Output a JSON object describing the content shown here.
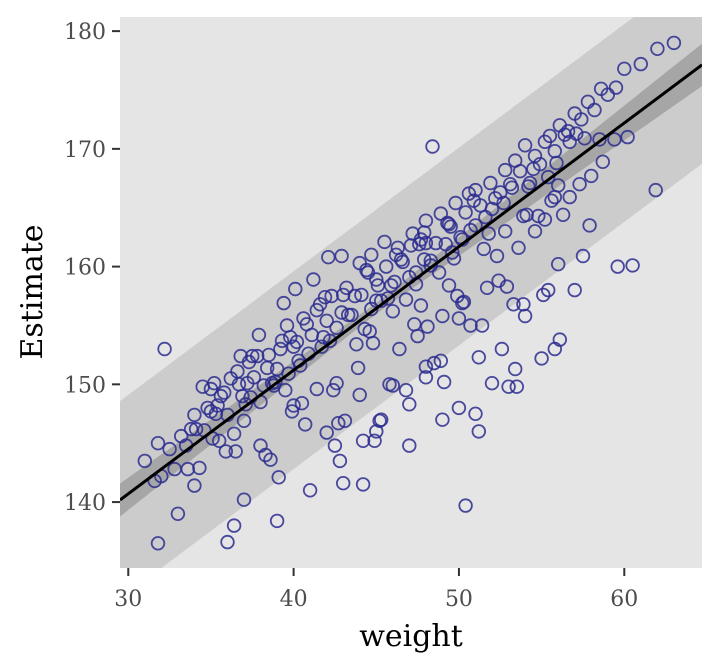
{
  "chart_data": {
    "type": "scatter",
    "title": "",
    "xlabel": "weight",
    "ylabel": "Estimate",
    "xlim": [
      29.5,
      64.7
    ],
    "ylim": [
      134.4,
      181.2
    ],
    "x_ticks": [
      30,
      40,
      50,
      60
    ],
    "y_ticks": [
      140,
      150,
      160,
      170,
      180
    ],
    "grid": false,
    "background": "#e5e5e5",
    "colors": {
      "points": "#2b2b8f",
      "line": "#000000",
      "prediction_band": "#cccccc",
      "mean_band": "#a6a6a6"
    },
    "regression_line": {
      "intercept": 109.2,
      "slope": 1.05
    },
    "mean_interval_halfwidth": {
      "at_x_min": 1.4,
      "at_center": 0.45,
      "center_x": 45,
      "at_x_max": 1.8
    },
    "prediction_interval_halfwidth": 8.4,
    "points_x": [
      31.0,
      31.6,
      31.8,
      32.0,
      32.5,
      32.8,
      33.2,
      33.5,
      33.8,
      34.0,
      34.3,
      34.6,
      34.8,
      35.0,
      35.2,
      35.5,
      35.8,
      36.0,
      36.2,
      36.4,
      36.6,
      36.9,
      37.1,
      37.3,
      37.6,
      37.8,
      38.0,
      38.2,
      38.5,
      38.7,
      39.0,
      39.3,
      39.5,
      39.8,
      40.0,
      40.3,
      40.6,
      40.9,
      41.1,
      41.4,
      41.7,
      42.0,
      42.3,
      42.6,
      42.9,
      43.2,
      43.5,
      43.8,
      44.1,
      44.4,
      44.7,
      45.0,
      45.3,
      45.6,
      45.9,
      46.2,
      46.5,
      46.8,
      47.1,
      47.4,
      47.7,
      48.0,
      48.3,
      48.6,
      48.9,
      49.2,
      49.5,
      49.8,
      50.1,
      50.4,
      50.7,
      51.0,
      51.3,
      51.6,
      51.9,
      52.2,
      52.5,
      52.8,
      53.1,
      53.4,
      53.7,
      54.0,
      54.3,
      54.6,
      54.9,
      55.2,
      55.5,
      55.8,
      56.1,
      56.4,
      56.7,
      57.0,
      57.4,
      57.8,
      58.2,
      58.6,
      59.0,
      59.5,
      60.0,
      61.0,
      62.0,
      63.0,
      32.2,
      33.0,
      34.0,
      35.0,
      36.0,
      37.0,
      38.0,
      39.0,
      40.0,
      41.0,
      42.0,
      43.0,
      44.0,
      45.0,
      46.0,
      47.0,
      48.0,
      49.0,
      50.0,
      51.0,
      52.0,
      53.0,
      54.0,
      55.0,
      56.0,
      57.0,
      36.5,
      38.6,
      40.7,
      42.8,
      44.9,
      47.0,
      49.1,
      51.2,
      53.3,
      55.4,
      57.5,
      34.5,
      37.2,
      39.9,
      42.6,
      45.3,
      48.0,
      50.7,
      53.4,
      56.1,
      35.6,
      38.9,
      41.4,
      43.9,
      46.4,
      48.9,
      51.4,
      53.9,
      31.8,
      36.4,
      39.1,
      42.5,
      44.2,
      46.8,
      48.5,
      50.4,
      51.2,
      53.5,
      55.8,
      59.6,
      61.9,
      48.4,
      55.2,
      56.6,
      33.6,
      35.4,
      37.0,
      38.8,
      40.4,
      41.8,
      43.3,
      44.6,
      46.0,
      47.4,
      48.8,
      50.2,
      51.5,
      52.8,
      54.1,
      55.4,
      56.7,
      58.0,
      59.4,
      60.5,
      34.1,
      35.9,
      37.5,
      39.2,
      40.8,
      42.2,
      43.7,
      45.1,
      46.6,
      47.9,
      49.3,
      50.6,
      52.0,
      53.2,
      54.5,
      55.8,
      57.1,
      58.5,
      36.8,
      39.6,
      41.9,
      44.5,
      46.3,
      48.0,
      49.7,
      51.8,
      53.9,
      55.6,
      57.3,
      40.1,
      42.1,
      44.7,
      47.2,
      49.9,
      52.4,
      35.3,
      36.7,
      38.4,
      40.2,
      41.6,
      43.0,
      44.3,
      45.7,
      47.0,
      48.3,
      49.6,
      51.0,
      52.3,
      53.6,
      54.8,
      56.0,
      37.9,
      39.4,
      41.2,
      42.9,
      44.0,
      45.5,
      47.6,
      49.4,
      50.9,
      52.7,
      54.2,
      55.9,
      57.6,
      43.1,
      44.2,
      45.8,
      47.3,
      48.1,
      49.0,
      50.3,
      51.7,
      45.0,
      46.1,
      47.9,
      49.4,
      35.1,
      37.4,
      39.7,
      42.4,
      44.8,
      47.5,
      50.0,
      52.6,
      55.1,
      57.9,
      58.7,
      60.2,
      38.3,
      40.5,
      42.7,
      45.2,
      47.7,
      50.2,
      52.9,
      54.6,
      56.3
    ],
    "points_y": [
      143.5,
      141.8,
      145.0,
      142.2,
      144.5,
      142.8,
      145.6,
      144.8,
      146.2,
      147.4,
      142.9,
      146.1,
      148.0,
      147.7,
      150.1,
      145.2,
      149.3,
      147.4,
      150.5,
      145.8,
      151.1,
      149.0,
      148.3,
      151.9,
      150.6,
      152.4,
      148.5,
      149.9,
      152.5,
      150.1,
      151.3,
      153.7,
      149.5,
      154.0,
      153.2,
      152.0,
      155.6,
      152.6,
      154.2,
      156.3,
      153.2,
      155.4,
      157.5,
      154.8,
      156.1,
      158.2,
      155.9,
      153.4,
      157.6,
      159.7,
      156.4,
      158.9,
      157.1,
      160.0,
      158.4,
      161.0,
      160.6,
      157.2,
      161.8,
      159.5,
      162.3,
      163.9,
      160.1,
      162.0,
      164.5,
      161.9,
      163.4,
      165.4,
      162.5,
      164.6,
      163.1,
      166.5,
      165.2,
      164.2,
      167.1,
      165.8,
      166.3,
      168.2,
      167.0,
      169.0,
      168.1,
      170.3,
      167.1,
      169.4,
      168.7,
      170.6,
      171.1,
      169.8,
      172.0,
      171.2,
      170.6,
      173.0,
      172.5,
      174.0,
      173.3,
      175.1,
      174.6,
      175.2,
      176.8,
      177.2,
      178.5,
      179.0,
      153.0,
      139.0,
      141.4,
      149.6,
      136.6,
      140.2,
      144.8,
      138.4,
      148.2,
      141.0,
      145.9,
      141.6,
      149.1,
      146.0,
      149.9,
      144.8,
      150.6,
      147.0,
      148.0,
      147.5,
      150.1,
      149.8,
      155.8,
      152.2,
      160.2,
      158.0,
      144.3,
      143.6,
      146.6,
      143.5,
      145.2,
      148.3,
      150.2,
      152.3,
      156.8,
      158.0,
      160.9,
      149.8,
      150.1,
      147.7,
      150.1,
      147.0,
      151.5,
      155.0,
      151.3,
      153.8,
      149.0,
      150.2,
      149.6,
      151.4,
      153.0,
      152.0,
      155.0,
      156.8,
      136.5,
      138.0,
      142.1,
      144.8,
      141.5,
      149.5,
      151.8,
      139.7,
      146.0,
      149.8,
      153.0,
      160.0,
      166.5,
      170.2,
      164.0,
      171.5,
      142.8,
      148.2,
      146.9,
      149.9,
      151.6,
      154.0,
      155.9,
      154.5,
      156.2,
      158.5,
      159.5,
      162.3,
      161.5,
      163.0,
      164.4,
      167.6,
      165.9,
      167.7,
      170.8,
      160.1,
      146.2,
      144.3,
      152.4,
      153.0,
      155.1,
      153.7,
      157.5,
      158.4,
      160.4,
      162.9,
      163.7,
      166.2,
      164.9,
      166.7,
      168.3,
      165.9,
      171.3,
      170.8,
      152.4,
      155.0,
      157.4,
      159.5,
      161.6,
      162.0,
      160.7,
      162.8,
      164.3,
      165.6,
      167.0,
      158.1,
      160.8,
      161.0,
      162.8,
      157.5,
      158.8,
      147.5,
      150.0,
      151.4,
      153.6,
      156.8,
      157.6,
      154.7,
      157.3,
      159.1,
      160.5,
      161.2,
      163.5,
      160.9,
      161.6,
      164.3,
      166.9,
      154.2,
      156.9,
      158.9,
      160.9,
      160.3,
      162.1,
      161.9,
      163.6,
      165.6,
      165.4,
      166.8,
      168.8,
      170.9,
      146.9,
      145.2,
      150.0,
      155.1,
      154.9,
      155.8,
      157.0,
      158.2,
      157.1,
      158.7,
      160.6,
      158.4,
      145.4,
      148.9,
      150.9,
      149.5,
      153.5,
      154.1,
      155.6,
      153.0,
      157.6,
      163.5,
      168.9,
      171.0,
      144.0,
      148.4,
      146.7,
      146.9,
      156.7,
      156.9,
      158.3,
      163.0,
      164.4
    ]
  }
}
